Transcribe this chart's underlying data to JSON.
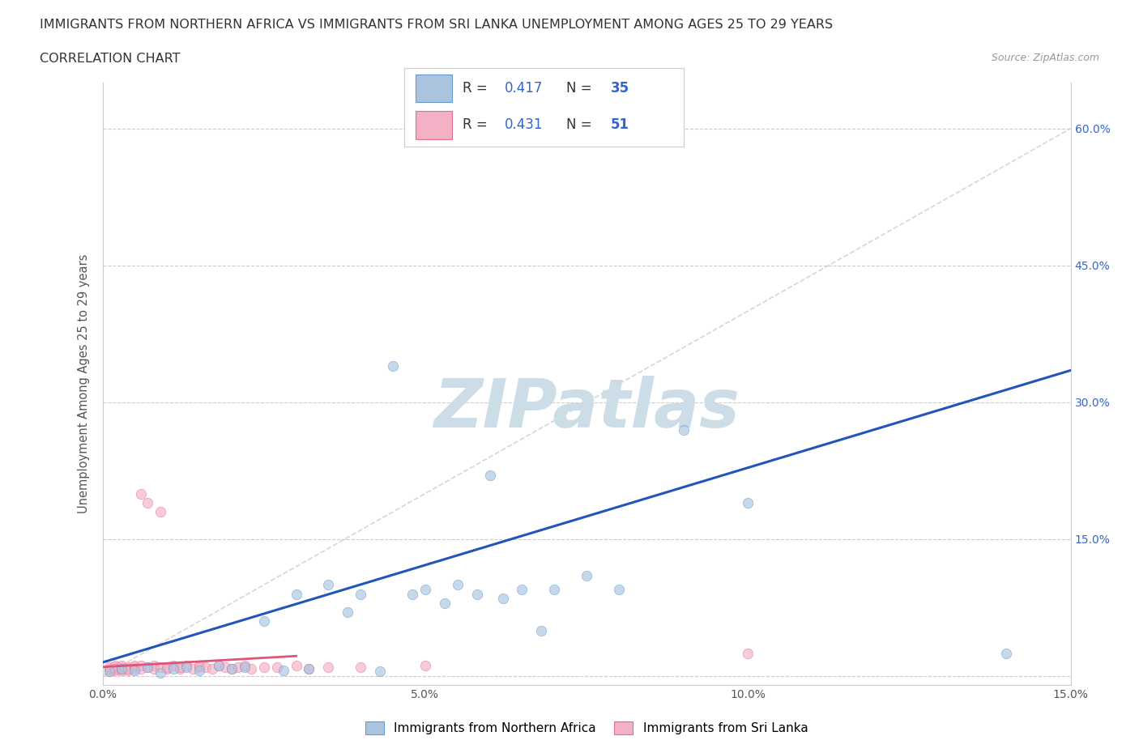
{
  "title_line1": "IMMIGRANTS FROM NORTHERN AFRICA VS IMMIGRANTS FROM SRI LANKA UNEMPLOYMENT AMONG AGES 25 TO 29 YEARS",
  "title_line2": "CORRELATION CHART",
  "source_text": "Source: ZipAtlas.com",
  "ylabel": "Unemployment Among Ages 25 to 29 years",
  "xlim": [
    0.0,
    0.15
  ],
  "ylim": [
    -0.01,
    0.65
  ],
  "xticks": [
    0.0,
    0.05,
    0.1,
    0.15
  ],
  "xticklabels": [
    "0.0%",
    "5.0%",
    "10.0%",
    "15.0%"
  ],
  "yticks": [
    0.0,
    0.15,
    0.3,
    0.45,
    0.6
  ],
  "right_yticklabels": [
    "",
    "15.0%",
    "30.0%",
    "45.0%",
    "60.0%"
  ],
  "series1_name": "Immigrants from Northern Africa",
  "series1_color": "#aac4e0",
  "series1_edge_color": "#6699cc",
  "series1_R": 0.417,
  "series1_N": 35,
  "series2_name": "Immigrants from Sri Lanka",
  "series2_color": "#f4b0c4",
  "series2_edge_color": "#e07090",
  "series2_R": 0.431,
  "series2_N": 51,
  "legend_R_color": "#3366cc",
  "legend_N_color": "#3366cc",
  "watermark": "ZIPatlas",
  "watermark_color": "#ccdde8",
  "grid_color": "#cccccc",
  "diagonal_color": "#cccccc",
  "trend1_color": "#2255bb",
  "trend2_color": "#dd5577",
  "series1_x": [
    0.001,
    0.003,
    0.005,
    0.007,
    0.009,
    0.011,
    0.013,
    0.015,
    0.018,
    0.02,
    0.022,
    0.025,
    0.028,
    0.03,
    0.032,
    0.035,
    0.038,
    0.04,
    0.043,
    0.045,
    0.048,
    0.05,
    0.053,
    0.055,
    0.058,
    0.06,
    0.062,
    0.065,
    0.068,
    0.07,
    0.075,
    0.08,
    0.09,
    0.1,
    0.14
  ],
  "series1_y": [
    0.005,
    0.008,
    0.006,
    0.01,
    0.004,
    0.008,
    0.01,
    0.006,
    0.012,
    0.008,
    0.01,
    0.06,
    0.006,
    0.09,
    0.008,
    0.1,
    0.07,
    0.09,
    0.005,
    0.34,
    0.09,
    0.095,
    0.08,
    0.1,
    0.09,
    0.22,
    0.085,
    0.095,
    0.05,
    0.095,
    0.11,
    0.095,
    0.27,
    0.19,
    0.025
  ],
  "series2_x": [
    0.001,
    0.001,
    0.001,
    0.002,
    0.002,
    0.002,
    0.002,
    0.003,
    0.003,
    0.003,
    0.003,
    0.004,
    0.004,
    0.004,
    0.005,
    0.005,
    0.005,
    0.006,
    0.006,
    0.006,
    0.007,
    0.007,
    0.008,
    0.008,
    0.009,
    0.009,
    0.01,
    0.01,
    0.011,
    0.012,
    0.012,
    0.013,
    0.014,
    0.015,
    0.015,
    0.016,
    0.017,
    0.018,
    0.019,
    0.02,
    0.021,
    0.022,
    0.023,
    0.025,
    0.027,
    0.03,
    0.032,
    0.035,
    0.04,
    0.05,
    0.1
  ],
  "series2_y": [
    0.005,
    0.008,
    0.01,
    0.006,
    0.01,
    0.012,
    0.008,
    0.006,
    0.01,
    0.012,
    0.008,
    0.006,
    0.01,
    0.008,
    0.01,
    0.012,
    0.008,
    0.2,
    0.012,
    0.008,
    0.19,
    0.01,
    0.012,
    0.008,
    0.18,
    0.01,
    0.008,
    0.01,
    0.012,
    0.008,
    0.01,
    0.012,
    0.008,
    0.01,
    0.012,
    0.01,
    0.008,
    0.012,
    0.01,
    0.008,
    0.01,
    0.012,
    0.008,
    0.01,
    0.01,
    0.012,
    0.008,
    0.01,
    0.01,
    0.012,
    0.025
  ],
  "trend1_x": [
    0.0,
    0.15
  ],
  "trend1_y": [
    0.015,
    0.335
  ],
  "trend2_x": [
    0.0,
    0.03
  ],
  "trend2_y": [
    0.01,
    0.022
  ],
  "marker_size": 80,
  "marker_alpha": 0.65
}
